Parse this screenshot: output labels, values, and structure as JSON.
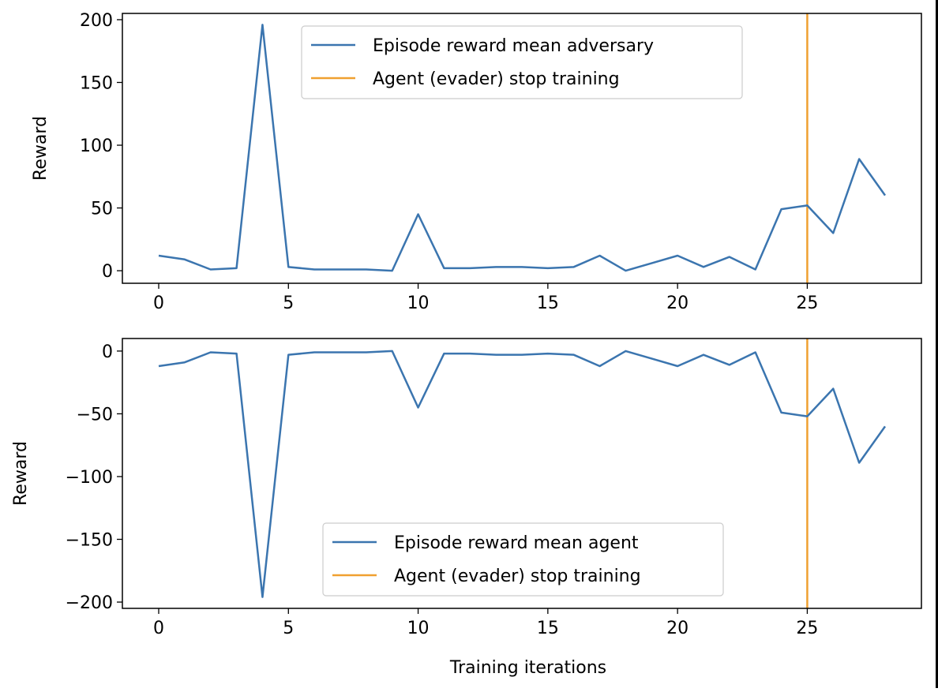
{
  "chart_data": [
    {
      "type": "line",
      "title": "",
      "xlabel": "",
      "ylabel": "Reward",
      "xlim": [
        -1.4,
        29.4
      ],
      "ylim": [
        -10,
        205
      ],
      "xticks": [
        0,
        5,
        10,
        15,
        20,
        25
      ],
      "yticks": [
        0,
        50,
        100,
        150,
        200
      ],
      "grid": false,
      "legend_position": "upper center",
      "series": [
        {
          "name": "Episode reward mean adversary",
          "color": "#3b75af",
          "x": [
            0,
            1,
            2,
            3,
            4,
            5,
            6,
            7,
            8,
            9,
            10,
            11,
            12,
            13,
            14,
            15,
            16,
            17,
            18,
            19,
            20,
            21,
            22,
            23,
            24,
            25,
            26,
            27,
            28
          ],
          "values": [
            12,
            9,
            1,
            2,
            196,
            3,
            1,
            1,
            1,
            0,
            45,
            2,
            2,
            3,
            3,
            2,
            3,
            12,
            0,
            6,
            12,
            3,
            11,
            1,
            49,
            52,
            30,
            89,
            60
          ]
        }
      ],
      "vlines": [
        {
          "name": "Agent (evader) stop training",
          "x": 25,
          "color": "#f0a030"
        }
      ]
    },
    {
      "type": "line",
      "title": "",
      "xlabel": "Training iterations",
      "ylabel": "Reward",
      "xlim": [
        -1.4,
        29.4
      ],
      "ylim": [
        -205,
        10
      ],
      "xticks": [
        0,
        5,
        10,
        15,
        20,
        25
      ],
      "yticks": [
        0,
        -50,
        -100,
        -150,
        -200
      ],
      "grid": false,
      "legend_position": "lower center",
      "series": [
        {
          "name": "Episode reward mean agent",
          "color": "#3b75af",
          "x": [
            0,
            1,
            2,
            3,
            4,
            5,
            6,
            7,
            8,
            9,
            10,
            11,
            12,
            13,
            14,
            15,
            16,
            17,
            18,
            19,
            20,
            21,
            22,
            23,
            24,
            25,
            26,
            27,
            28
          ],
          "values": [
            -12,
            -9,
            -1,
            -2,
            -196,
            -3,
            -1,
            -1,
            -1,
            0,
            -45,
            -2,
            -2,
            -3,
            -3,
            -2,
            -3,
            -12,
            0,
            -6,
            -12,
            -3,
            -11,
            -1,
            -49,
            -52,
            -30,
            -89,
            -60
          ]
        }
      ],
      "vlines": [
        {
          "name": "Agent (evader) stop training",
          "x": 25,
          "color": "#f0a030"
        }
      ]
    }
  ]
}
